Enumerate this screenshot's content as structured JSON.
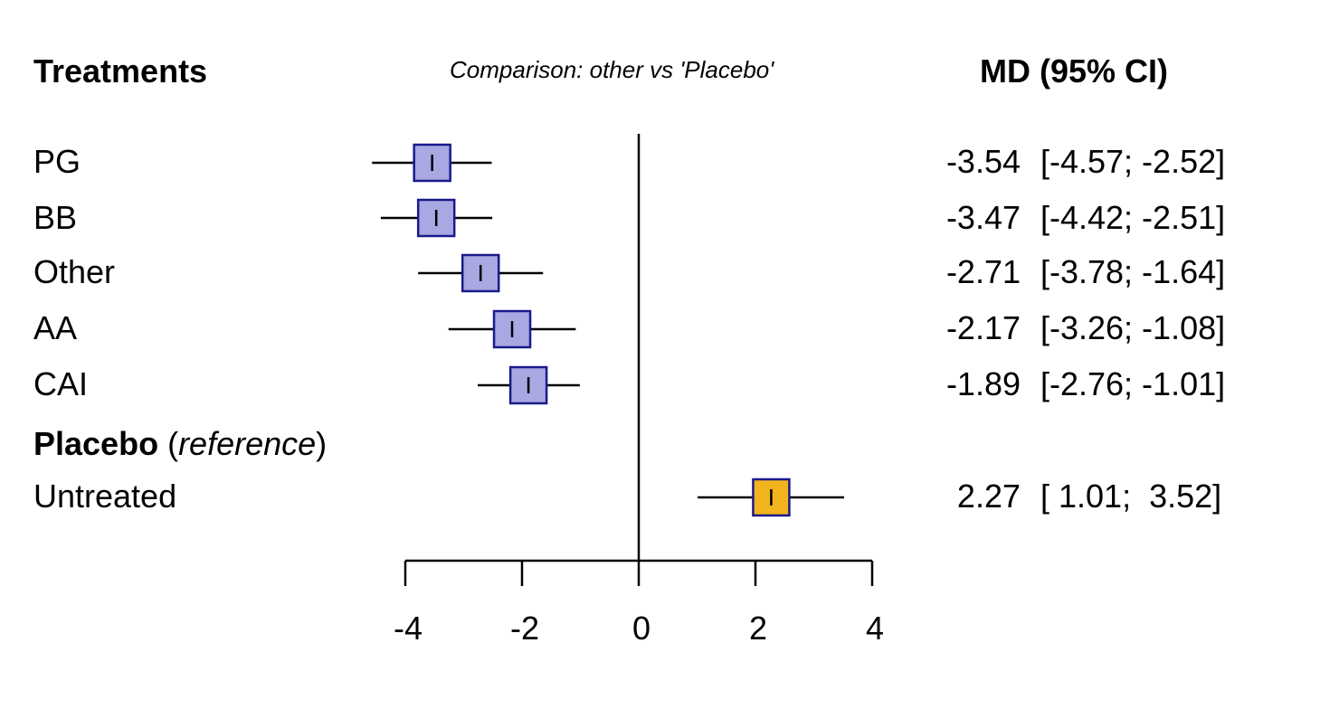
{
  "header": {
    "treatments": "Treatments",
    "comparison": "Comparison: other vs 'Placebo'",
    "md_ci": "MD (95%  CI)"
  },
  "colors": {
    "box_fill": "#a8a8e2",
    "box_stroke": "#1a1a8c",
    "untreated_fill": "#f2b31c",
    "line": "#000000"
  },
  "chart_data": {
    "type": "forest",
    "xlim": [
      -4,
      4
    ],
    "xticks": [
      -4,
      -2,
      0,
      2,
      4
    ],
    "xtick_labels": [
      "-4",
      "-2",
      "0",
      "2",
      "4"
    ],
    "reference": {
      "name": "Placebo",
      "note": "reference"
    },
    "rows": [
      {
        "label": "PG",
        "md": -3.54,
        "lower": -4.57,
        "upper": -2.52,
        "md_text": "-3.54",
        "ci_text": "[-4.57; -2.52]"
      },
      {
        "label": "BB",
        "md": -3.47,
        "lower": -4.42,
        "upper": -2.51,
        "md_text": "-3.47",
        "ci_text": "[-4.42; -2.51]"
      },
      {
        "label": "Other",
        "md": -2.71,
        "lower": -3.78,
        "upper": -1.64,
        "md_text": "-2.71",
        "ci_text": "[-3.78; -1.64]"
      },
      {
        "label": "AA",
        "md": -2.17,
        "lower": -3.26,
        "upper": -1.08,
        "md_text": "-2.17",
        "ci_text": "[-3.26; -1.08]"
      },
      {
        "label": "CAI",
        "md": -1.89,
        "lower": -2.76,
        "upper": -1.01,
        "md_text": "-1.89",
        "ci_text": "[-2.76; -1.01]"
      },
      {
        "label": "Untreated",
        "md": 2.27,
        "lower": 1.01,
        "upper": 3.52,
        "md_text": "2.27",
        "ci_text": "[ 1.01;  3.52]"
      }
    ]
  }
}
